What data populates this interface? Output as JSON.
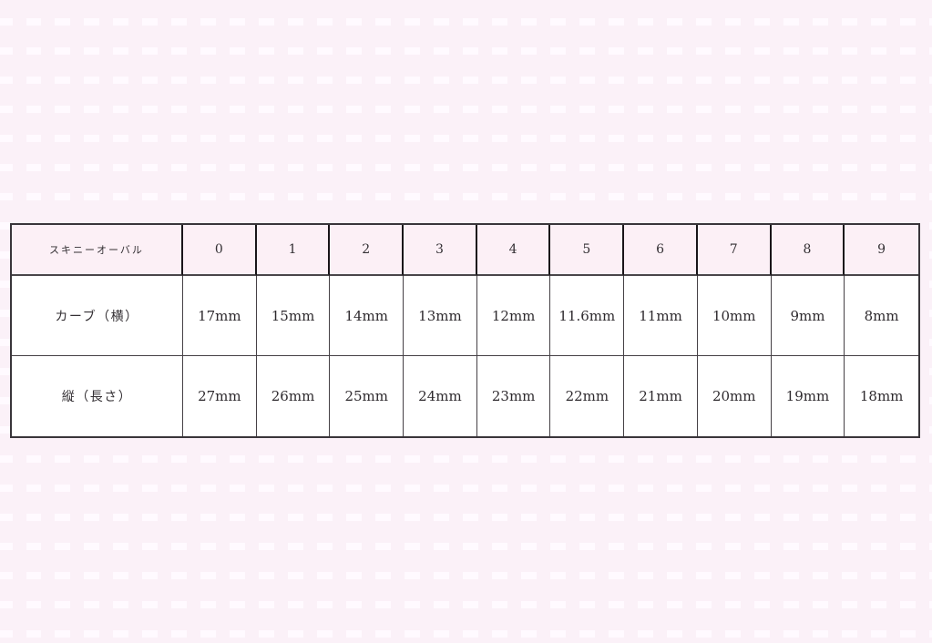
{
  "page": {
    "background_color": "#fbf1f8",
    "pattern_tile_color": "#fffaff"
  },
  "colors": {
    "table_body_bg": "#ffffff",
    "table_header_bg": "#fcf0f6",
    "border_thin": "#454045",
    "border_thick": "#191519",
    "text": "#2e2a2e"
  },
  "chart_data": {
    "type": "table",
    "title": "スキニーオーバル",
    "columns": [
      "スキニーオーバル",
      "0",
      "1",
      "2",
      "3",
      "4",
      "5",
      "6",
      "7",
      "8",
      "9"
    ],
    "rows": [
      [
        "カーブ（横）",
        "17mm",
        "15mm",
        "14mm",
        "13mm",
        "12mm",
        "11.6mm",
        "11mm",
        "10mm",
        "9mm",
        "8mm"
      ],
      [
        "縦（長さ）",
        "27mm",
        "26mm",
        "25mm",
        "24mm",
        "23mm",
        "22mm",
        "21mm",
        "20mm",
        "19mm",
        "18mm"
      ]
    ]
  }
}
